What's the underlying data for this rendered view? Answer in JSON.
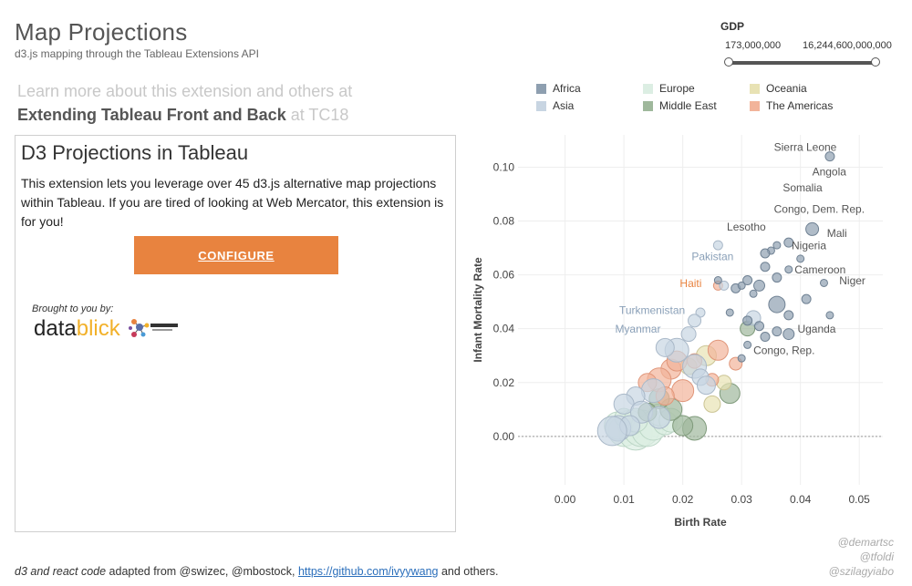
{
  "header": {
    "title": "Map Projections",
    "subtitle": "d3.js mapping through the Tableau Extensions API",
    "learn_line1": "Learn more about this extension and others at",
    "learn_bold": "Extending Tableau Front and Back",
    "learn_light": " at TC18"
  },
  "panel": {
    "title": "D3 Projections in Tableau",
    "text": "This extension lets you leverage over 45 d3.js alternative map projections within Tableau. If you are tired of looking at Web Mercator, this extension is for you!",
    "button_label": "CONFIGURE",
    "brought_by": "Brought to you by:",
    "logo_text_a": "data",
    "logo_text_b": "blick"
  },
  "gdp_filter": {
    "label": "GDP",
    "min": "173,000,000",
    "max": "16,244,600,000,000"
  },
  "legend": [
    {
      "label": "Africa",
      "color": "#8e9fb0"
    },
    {
      "label": "Europe",
      "color": "#dceee3"
    },
    {
      "label": "Oceania",
      "color": "#e8e2b4"
    },
    {
      "label": "Asia",
      "color": "#c8d5e2"
    },
    {
      "label": "Middle East",
      "color": "#9fb89c"
    },
    {
      "label": "The Americas",
      "color": "#f2b49a"
    }
  ],
  "chart_data": {
    "type": "scatter",
    "title": "",
    "xlabel": "Birth Rate",
    "ylabel": "Infant Mortality Rate",
    "xlim": [
      -0.008,
      0.054
    ],
    "ylim": [
      -0.018,
      0.112
    ],
    "x_ticks": [
      "0.00",
      "0.01",
      "0.02",
      "0.03",
      "0.04",
      "0.05"
    ],
    "x_tick_values": [
      0,
      0.01,
      0.02,
      0.03,
      0.04,
      0.05
    ],
    "y_ticks": [
      "0.00",
      "0.02",
      "0.04",
      "0.06",
      "0.08",
      "0.10"
    ],
    "y_tick_values": [
      0,
      0.02,
      0.04,
      0.06,
      0.08,
      0.1
    ],
    "labels": [
      {
        "text": "Sierra Leone",
        "x": 0.0355,
        "y": 0.106,
        "color": "#555"
      },
      {
        "text": "Angola",
        "x": 0.042,
        "y": 0.097,
        "color": "#555"
      },
      {
        "text": "Somalia",
        "x": 0.037,
        "y": 0.091,
        "color": "#555"
      },
      {
        "text": "Congo, Dem. Rep.",
        "x": 0.0355,
        "y": 0.083,
        "color": "#555"
      },
      {
        "text": "Mali",
        "x": 0.0445,
        "y": 0.074,
        "color": "#555"
      },
      {
        "text": "Lesotho",
        "x": 0.0275,
        "y": 0.0765,
        "color": "#555"
      },
      {
        "text": "Nigeria",
        "x": 0.0385,
        "y": 0.0695,
        "color": "#555"
      },
      {
        "text": "Pakistan",
        "x": 0.0215,
        "y": 0.0655,
        "color": "#8aa0b8"
      },
      {
        "text": "Cameroon",
        "x": 0.039,
        "y": 0.0605,
        "color": "#555"
      },
      {
        "text": "Niger",
        "x": 0.0466,
        "y": 0.0565,
        "color": "#555"
      },
      {
        "text": "Haiti",
        "x": 0.0195,
        "y": 0.0555,
        "color": "#e8833f"
      },
      {
        "text": "Turkmenistan",
        "x": 0.0092,
        "y": 0.0455,
        "color": "#8aa0b8"
      },
      {
        "text": "Myanmar",
        "x": 0.0085,
        "y": 0.0385,
        "color": "#8aa0b8"
      },
      {
        "text": "Uganda",
        "x": 0.0395,
        "y": 0.0385,
        "color": "#555"
      },
      {
        "text": "Congo, Rep.",
        "x": 0.032,
        "y": 0.0305,
        "color": "#555"
      }
    ],
    "series": [
      {
        "name": "Africa",
        "points": [
          [
            0.045,
            0.104,
            5
          ],
          [
            0.042,
            0.077,
            7
          ],
          [
            0.04,
            0.066,
            4
          ],
          [
            0.038,
            0.072,
            5
          ],
          [
            0.036,
            0.071,
            4
          ],
          [
            0.035,
            0.069,
            4
          ],
          [
            0.034,
            0.068,
            5
          ],
          [
            0.034,
            0.063,
            5
          ],
          [
            0.038,
            0.062,
            4
          ],
          [
            0.036,
            0.059,
            5
          ],
          [
            0.044,
            0.057,
            4
          ],
          [
            0.033,
            0.056,
            6
          ],
          [
            0.032,
            0.053,
            4
          ],
          [
            0.029,
            0.055,
            5
          ],
          [
            0.031,
            0.058,
            5
          ],
          [
            0.036,
            0.049,
            9
          ],
          [
            0.038,
            0.045,
            5
          ],
          [
            0.041,
            0.051,
            5
          ],
          [
            0.045,
            0.045,
            4
          ],
          [
            0.038,
            0.038,
            6
          ],
          [
            0.036,
            0.039,
            5
          ],
          [
            0.031,
            0.043,
            5
          ],
          [
            0.033,
            0.041,
            5
          ],
          [
            0.034,
            0.037,
            5
          ],
          [
            0.031,
            0.034,
            4
          ],
          [
            0.03,
            0.029,
            4
          ],
          [
            0.028,
            0.046,
            4
          ],
          [
            0.026,
            0.058,
            4
          ],
          [
            0.03,
            0.056,
            4
          ]
        ]
      },
      {
        "name": "Asia",
        "points": [
          [
            0.026,
            0.071,
            5
          ],
          [
            0.032,
            0.044,
            8
          ],
          [
            0.027,
            0.056,
            5
          ],
          [
            0.023,
            0.046,
            5
          ],
          [
            0.022,
            0.043,
            7
          ],
          [
            0.021,
            0.038,
            8
          ],
          [
            0.019,
            0.032,
            13
          ],
          [
            0.017,
            0.033,
            10
          ],
          [
            0.022,
            0.026,
            13
          ],
          [
            0.023,
            0.022,
            9
          ],
          [
            0.024,
            0.019,
            10
          ],
          [
            0.015,
            0.017,
            13
          ],
          [
            0.012,
            0.015,
            10
          ],
          [
            0.01,
            0.012,
            11
          ],
          [
            0.013,
            0.009,
            12
          ],
          [
            0.009,
            0.003,
            14
          ],
          [
            0.011,
            0.004,
            11
          ],
          [
            0.008,
            0.002,
            16
          ],
          [
            0.016,
            0.007,
            12
          ]
        ]
      },
      {
        "name": "Europe",
        "points": [
          [
            0.01,
            0.002,
            17
          ],
          [
            0.012,
            0.001,
            18
          ],
          [
            0.013,
            0.003,
            20
          ],
          [
            0.014,
            0.002,
            17
          ],
          [
            0.011,
            0.005,
            14
          ],
          [
            0.009,
            0.004,
            15
          ],
          [
            0.015,
            0.004,
            16
          ],
          [
            0.017,
            0.005,
            13
          ],
          [
            0.016,
            0.008,
            12
          ],
          [
            0.018,
            0.006,
            13
          ],
          [
            0.01,
            0.007,
            10
          ],
          [
            0.012,
            0.006,
            13
          ]
        ]
      },
      {
        "name": "Middle East",
        "points": [
          [
            0.028,
            0.016,
            11
          ],
          [
            0.022,
            0.003,
            13
          ],
          [
            0.02,
            0.004,
            11
          ],
          [
            0.018,
            0.01,
            12
          ],
          [
            0.016,
            0.014,
            11
          ],
          [
            0.031,
            0.04,
            8
          ],
          [
            0.014,
            0.009,
            10
          ]
        ]
      },
      {
        "name": "Oceania",
        "points": [
          [
            0.025,
            0.012,
            9
          ],
          [
            0.027,
            0.02,
            8
          ],
          [
            0.024,
            0.03,
            11
          ],
          [
            0.021,
            0.026,
            9
          ]
        ]
      },
      {
        "name": "The Americas",
        "points": [
          [
            0.026,
            0.056,
            5
          ],
          [
            0.026,
            0.032,
            11
          ],
          [
            0.029,
            0.027,
            7
          ],
          [
            0.018,
            0.025,
            11
          ],
          [
            0.016,
            0.021,
            13
          ],
          [
            0.02,
            0.017,
            12
          ],
          [
            0.014,
            0.02,
            10
          ],
          [
            0.019,
            0.028,
            11
          ],
          [
            0.022,
            0.028,
            8
          ],
          [
            0.025,
            0.021,
            7
          ],
          [
            0.017,
            0.015,
            10
          ]
        ]
      }
    ]
  },
  "footer": {
    "italic": "d3 and react code",
    "text": " adapted from @swizec, @mbostock, ",
    "link": "https://github.com/ivyywang",
    "text_end": " and others."
  },
  "credits": [
    "@demartsc",
    "@tfoldi",
    "@szilagyiabo"
  ]
}
